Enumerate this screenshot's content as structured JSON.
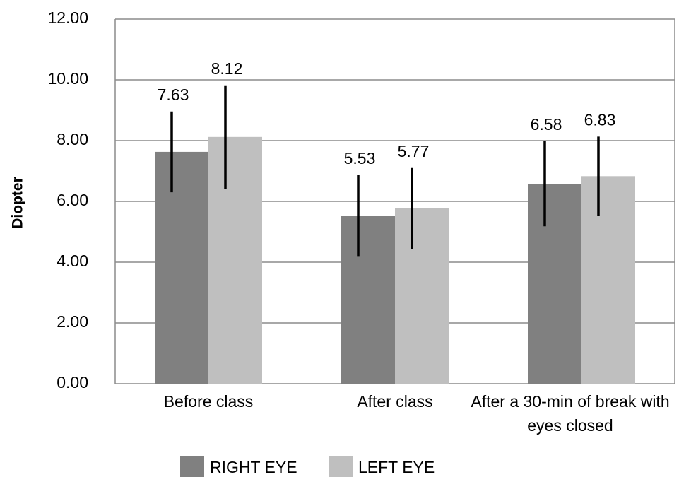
{
  "chart_data": {
    "type": "bar",
    "ylabel": "Diopter",
    "categories": [
      "Before class",
      "After class",
      "After a 30-min of break with eyes closed"
    ],
    "series": [
      {
        "name": "RIGHT EYE",
        "color": "#808080",
        "values": [
          7.63,
          5.53,
          6.58
        ],
        "errors": [
          1.33,
          1.33,
          1.4
        ]
      },
      {
        "name": "LEFT EYE",
        "color": "#bfbfbf",
        "values": [
          8.12,
          5.77,
          6.83
        ],
        "errors": [
          1.7,
          1.33,
          1.3
        ]
      }
    ],
    "ylim": [
      0,
      12
    ],
    "yticks": [
      {
        "value": 0,
        "label": "0.00"
      },
      {
        "value": 2,
        "label": "2.00"
      },
      {
        "value": 4,
        "label": "4.00"
      },
      {
        "value": 6,
        "label": "6.00"
      },
      {
        "value": 8,
        "label": "8.00"
      },
      {
        "value": 10,
        "label": "10.00"
      },
      {
        "value": 12,
        "label": "12.00"
      }
    ],
    "grid": true,
    "legend": "bottom"
  }
}
